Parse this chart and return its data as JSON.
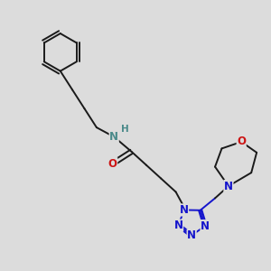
{
  "bg_color": "#dcdcdc",
  "bond_color": "#1a1a1a",
  "N_color": "#1414cc",
  "O_color": "#cc1414",
  "NH_color": "#4a8a8a",
  "line_width": 1.4,
  "font_size_atom": 8.5,
  "fig_width": 3.0,
  "fig_height": 3.0,
  "dpi": 100,
  "xlim": [
    0,
    10
  ],
  "ylim": [
    0,
    10
  ]
}
